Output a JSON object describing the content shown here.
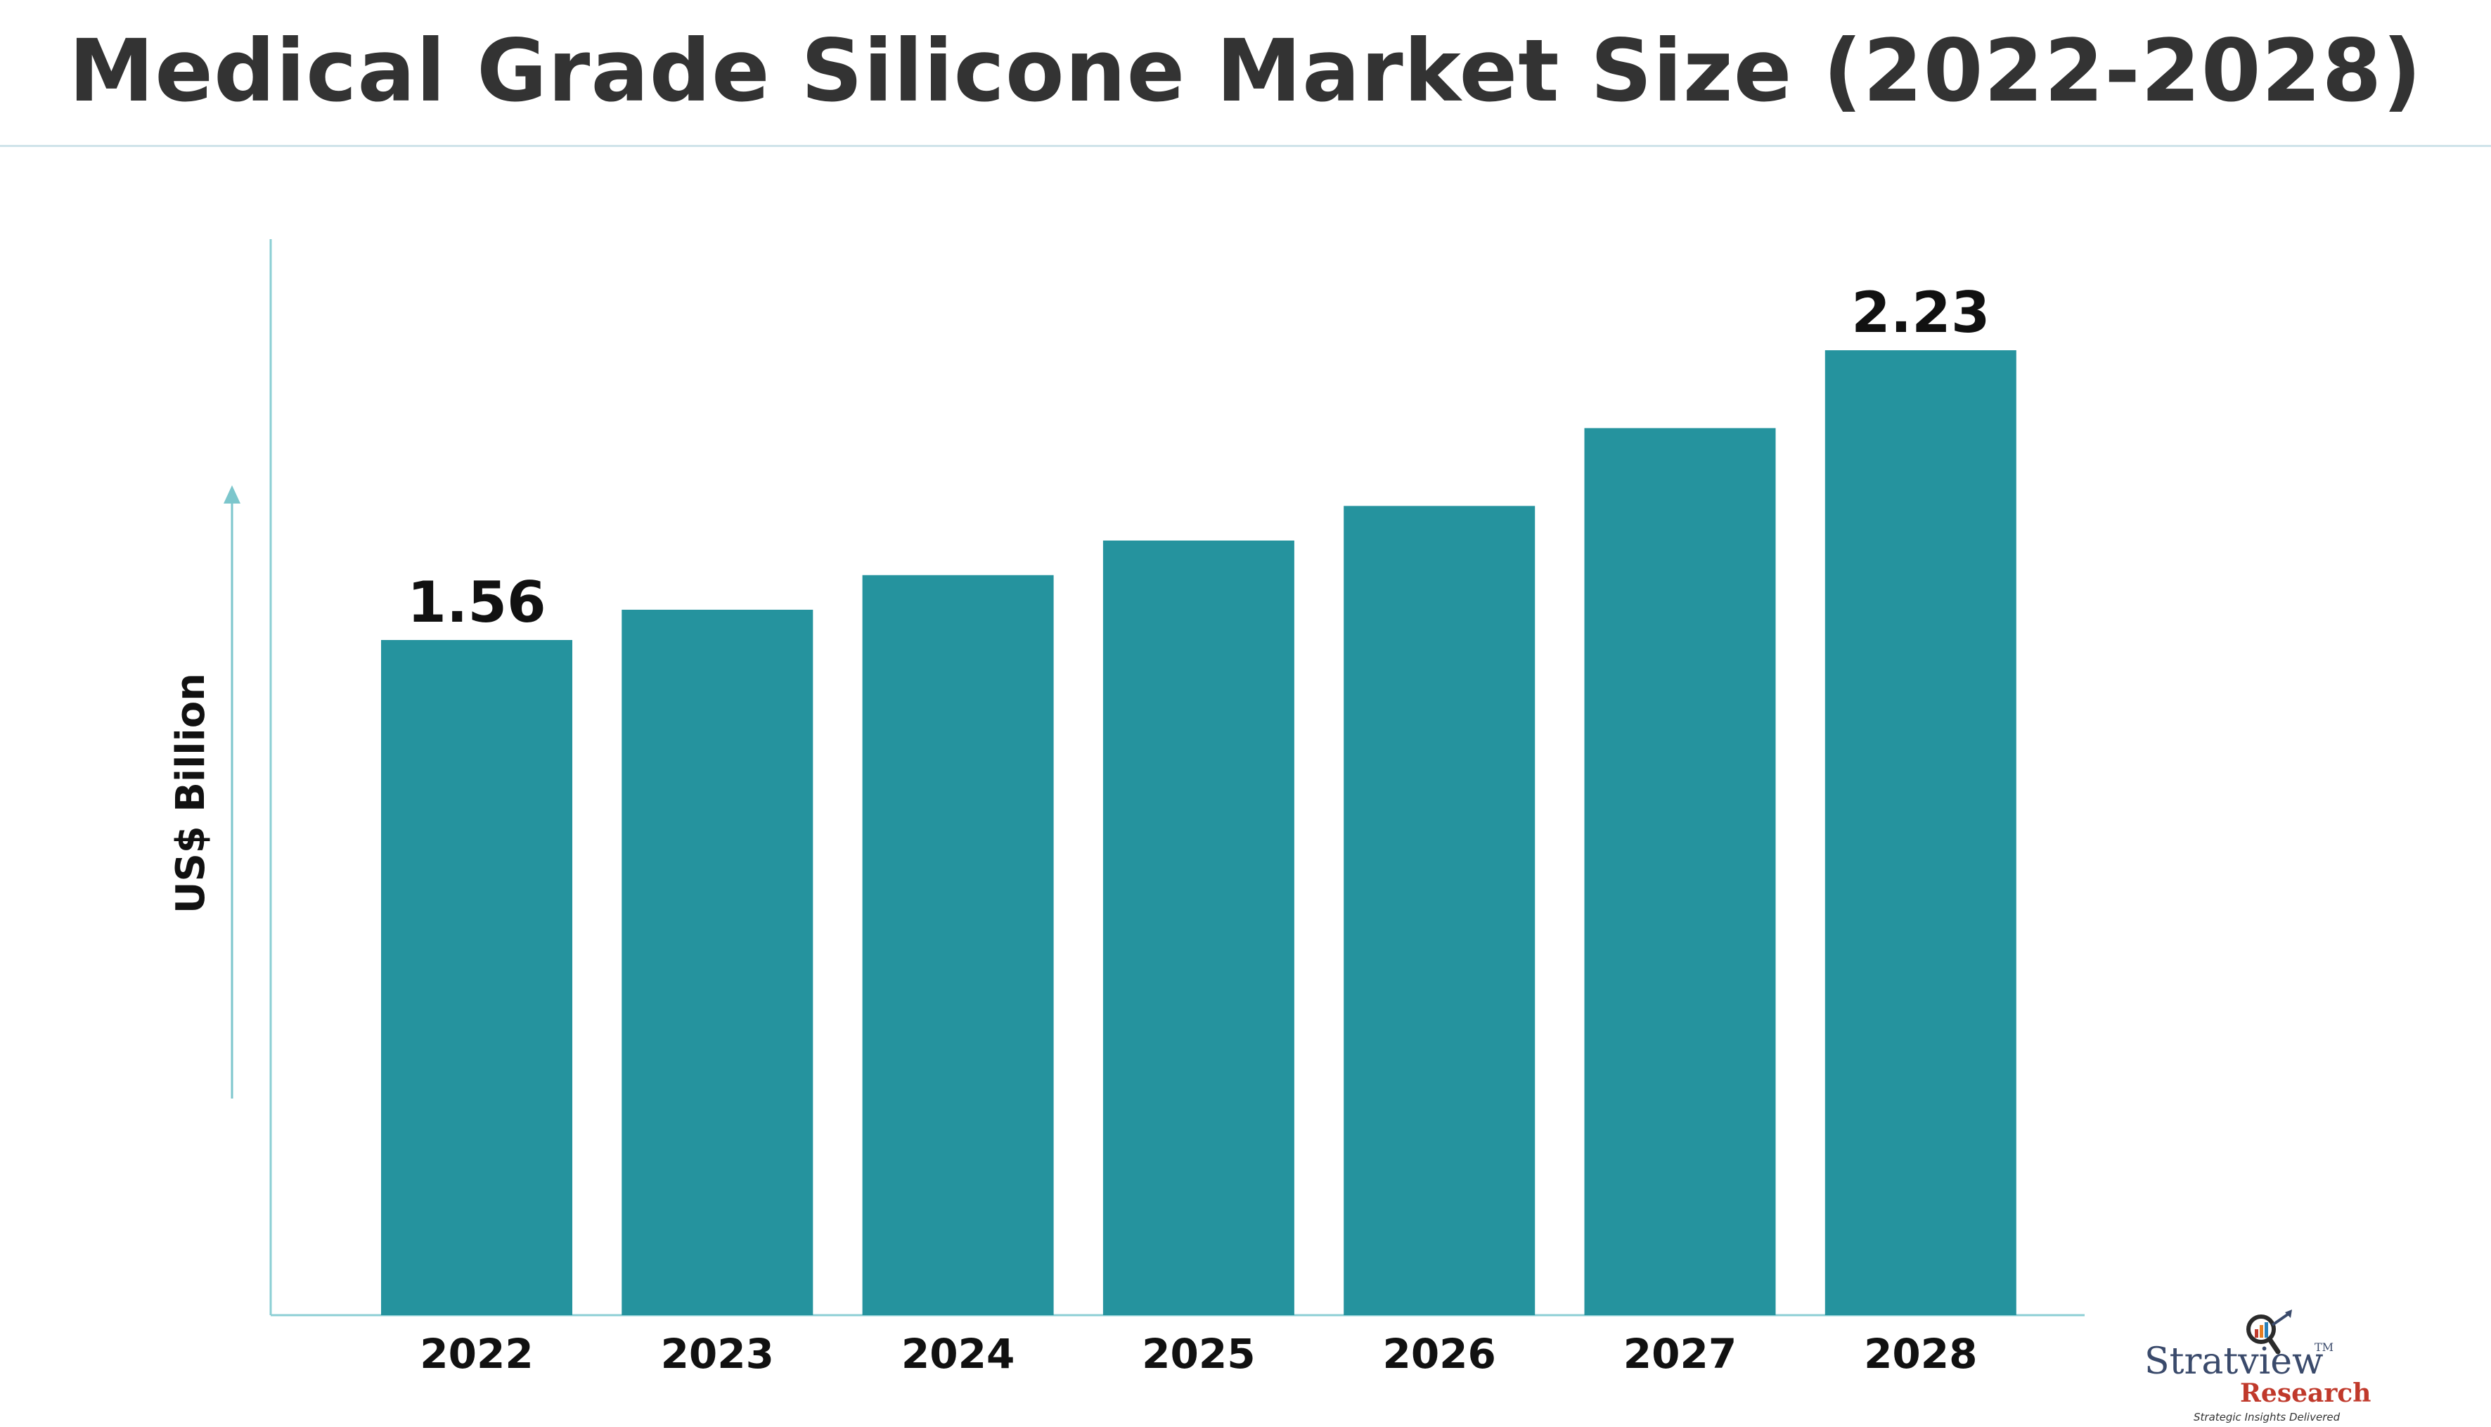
{
  "page": {
    "title": "Medical Grade Silicone Market Size (2022-2028)"
  },
  "colors": {
    "bar": "#25939E",
    "axis": "#8ccfd4",
    "arrow": "#7cc6cc",
    "title": "#333333",
    "label": "#111111"
  },
  "chart_data": {
    "type": "bar",
    "title": "Medical Grade Silicone Market Size (2022-2028)",
    "xlabel": "",
    "ylabel": "US$ Billion",
    "categories": [
      "2022",
      "2023",
      "2024",
      "2025",
      "2026",
      "2027",
      "2028"
    ],
    "values": [
      1.56,
      1.63,
      1.71,
      1.79,
      1.87,
      2.05,
      2.23
    ],
    "data_labels": [
      {
        "index": 0,
        "text": "1.56"
      },
      {
        "index": 6,
        "text": "2.23"
      }
    ],
    "ylim": [
      0,
      2.4
    ],
    "grid": false,
    "legend": "none"
  },
  "logo": {
    "brand_first": "Stratview",
    "brand_second": "Research",
    "trademark": "TM",
    "tagline": "Strategic Insights Delivered",
    "icon": "magnifier-growth-icon"
  }
}
